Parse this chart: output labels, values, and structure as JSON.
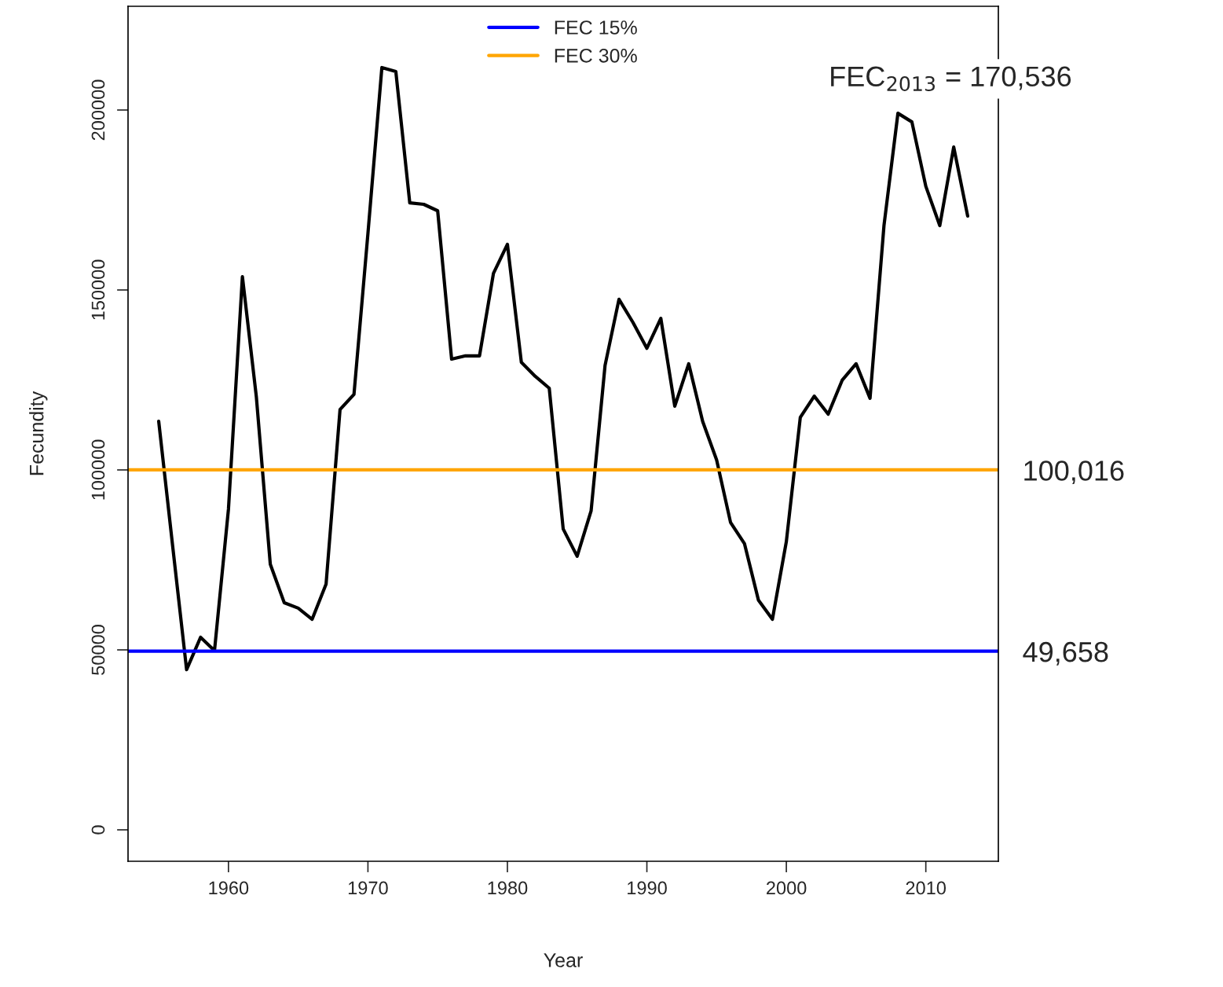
{
  "chart_data": {
    "type": "line",
    "xlabel": "Year",
    "ylabel": "Fecundity",
    "x": [
      1955,
      1956,
      1957,
      1958,
      1959,
      1960,
      1961,
      1962,
      1963,
      1964,
      1965,
      1966,
      1967,
      1968,
      1969,
      1970,
      1971,
      1972,
      1973,
      1974,
      1975,
      1976,
      1977,
      1978,
      1979,
      1980,
      1981,
      1982,
      1983,
      1984,
      1985,
      1986,
      1987,
      1988,
      1989,
      1990,
      1991,
      1992,
      1993,
      1994,
      1995,
      1996,
      1997,
      1998,
      1999,
      2000,
      2001,
      2002,
      2003,
      2004,
      2005,
      2006,
      2007,
      2008,
      2009,
      2010,
      2011,
      2012,
      2013
    ],
    "series": [
      {
        "color": "#000000",
        "values": [
          113500,
          78800,
          44500,
          53500,
          49800,
          89100,
          153700,
          120300,
          73800,
          63100,
          61600,
          58500,
          68300,
          116800,
          121000,
          165700,
          211800,
          210700,
          174200,
          173800,
          172000,
          130800,
          131700,
          131700,
          154600,
          162700,
          129900,
          126000,
          122700,
          83600,
          76000,
          88600,
          129000,
          147400,
          141000,
          133800,
          142100,
          117700,
          129500,
          113500,
          102800,
          85400,
          79500,
          63800,
          58500,
          80100,
          114600,
          120500,
          115500,
          124900,
          129500,
          119900,
          167900,
          199100,
          196700,
          178800,
          167900,
          189700,
          170536
        ]
      }
    ],
    "ref_lines": [
      {
        "axis": "y",
        "value": 49658,
        "label": "FEC 15%",
        "color": "#0000ff"
      },
      {
        "axis": "y",
        "value": 100016,
        "label": "FEC 30%",
        "color": "#ffa500"
      }
    ],
    "annotations": [
      "FEC$_{2013}$ = 170,536",
      {
        "text": "100,016",
        "x": 2015.2,
        "y": 100016
      },
      {
        "text": "49,658",
        "x": 2015.2,
        "y": 49658
      }
    ],
    "xlim": [
      1952.8,
      2015.2
    ],
    "ylim": [
      -8734,
      228821
    ],
    "xticks": [
      1960,
      1970,
      1980,
      1990,
      2000,
      2010
    ],
    "yticks": [
      0,
      50000,
      100000,
      150000,
      200000
    ],
    "legend": "top",
    "grid": false
  }
}
